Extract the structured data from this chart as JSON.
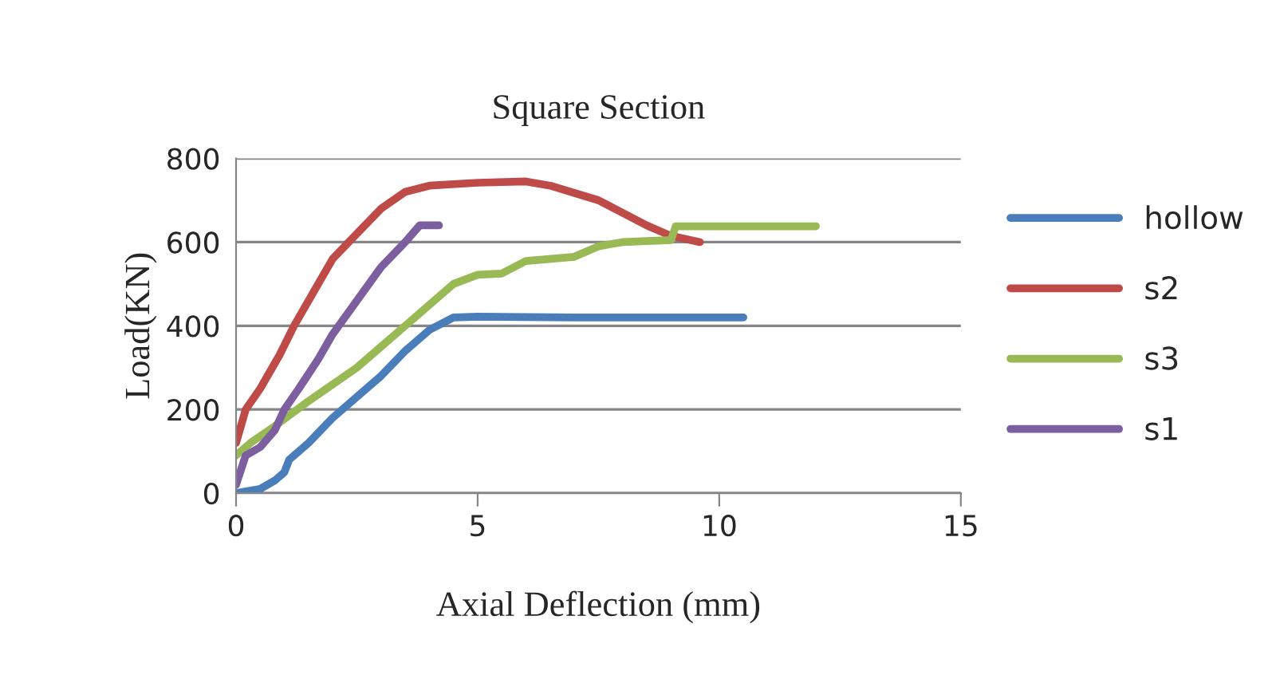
{
  "chart_data": {
    "type": "line",
    "title": "Square Section",
    "xlabel": "Axial Deflection (mm)",
    "ylabel": "Load(KN)",
    "xlim": [
      0,
      15
    ],
    "xticks": [
      0,
      5,
      10,
      15
    ],
    "ylim": [
      0,
      800
    ],
    "yticks": [
      0,
      200,
      400,
      600,
      800
    ],
    "grid": "y",
    "legend": "right",
    "marker": "none",
    "line_style": "solid",
    "series": [
      {
        "name": "hollow",
        "color": "#4a7ebb",
        "x": [
          0,
          0.5,
          0.8,
          1,
          1.1,
          1.5,
          2,
          2.5,
          3,
          3.5,
          4,
          4.5,
          5,
          7,
          10.5
        ],
        "values": [
          0,
          10,
          30,
          50,
          80,
          120,
          180,
          230,
          280,
          340,
          390,
          420,
          422,
          420,
          420
        ]
      },
      {
        "name": "s2",
        "color": "#be4b48",
        "x": [
          0,
          0.2,
          0.5,
          0.9,
          1.2,
          1.5,
          2,
          2.5,
          3,
          3.5,
          4,
          5,
          6,
          6.5,
          7.5,
          8.5,
          9,
          9.6
        ],
        "values": [
          120,
          200,
          250,
          330,
          400,
          460,
          560,
          620,
          680,
          720,
          735,
          742,
          745,
          735,
          700,
          640,
          615,
          600
        ]
      },
      {
        "name": "s3",
        "color": "#98b954",
        "x": [
          0,
          0.3,
          0.8,
          1.5,
          2,
          2.5,
          3,
          3.5,
          4,
          4.5,
          5,
          5.5,
          6,
          7,
          7.5,
          8,
          9,
          9.1,
          12
        ],
        "values": [
          90,
          120,
          160,
          220,
          260,
          300,
          350,
          400,
          450,
          500,
          522,
          525,
          555,
          565,
          590,
          600,
          605,
          638,
          638
        ]
      },
      {
        "name": "s1",
        "color": "#7d5fa0",
        "x": [
          0,
          0.2,
          0.5,
          0.8,
          1,
          1.3,
          1.7,
          2,
          2.5,
          3,
          3.5,
          3.8,
          4.2
        ],
        "values": [
          20,
          90,
          110,
          150,
          200,
          250,
          320,
          380,
          460,
          540,
          600,
          640,
          640
        ]
      }
    ]
  }
}
